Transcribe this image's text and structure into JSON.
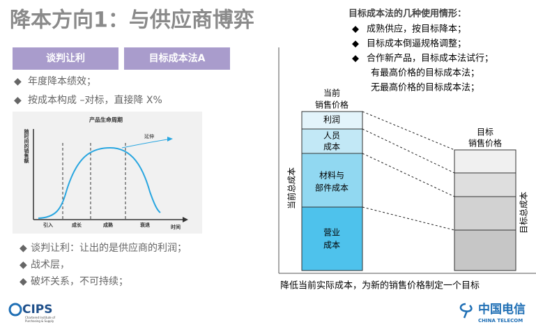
{
  "title": "降本方向1：与供应商博弈",
  "tabs": [
    "谈判让利",
    "目标成本法A"
  ],
  "left_bullets": [
    "年度降本绩效；",
    "按成本构成 –对标，直接降 X%"
  ],
  "lifecycle": {
    "title": "产品生命周期",
    "y_label": "随时间的销售额",
    "annotation": "延伸",
    "phases": [
      "引入",
      "成长",
      "成熟",
      "衰退"
    ],
    "x_label": "时间"
  },
  "bottom_bullets": [
    "谈判让利：让出的是供应商的利润；",
    "战术层，",
    "破坏关系，不可持续；"
  ],
  "right": {
    "heading": "目标成本法的几种使用情形：",
    "bullets": [
      "成熟供应，按目标降本；",
      "目标成本倒逼规格调整；",
      "合作新产品，目标成本法试行；"
    ],
    "sub_lines": [
      "有最高价格的目标成本法；",
      "无最高价格的目标成本法；"
    ]
  },
  "diagram": {
    "current_price": [
      "当前",
      "销售价格"
    ],
    "segments": [
      [
        "利润"
      ],
      [
        "人员",
        "成本"
      ],
      [
        "材料与",
        "部件成本"
      ],
      [
        "营业",
        "成本"
      ]
    ],
    "current_total": "当前总成本",
    "target_price": [
      "目标",
      "销售价格"
    ],
    "target_total": "目标总成本",
    "caption": "降低当前实际成本，为新的销售价格制定一个目标"
  },
  "logos": {
    "cips": "CIPS",
    "cips_sub": [
      "Chartered Institute of",
      "Purchasing & Supply"
    ],
    "telecom": "中国电信",
    "telecom_en": "CHINA TELECOM"
  }
}
